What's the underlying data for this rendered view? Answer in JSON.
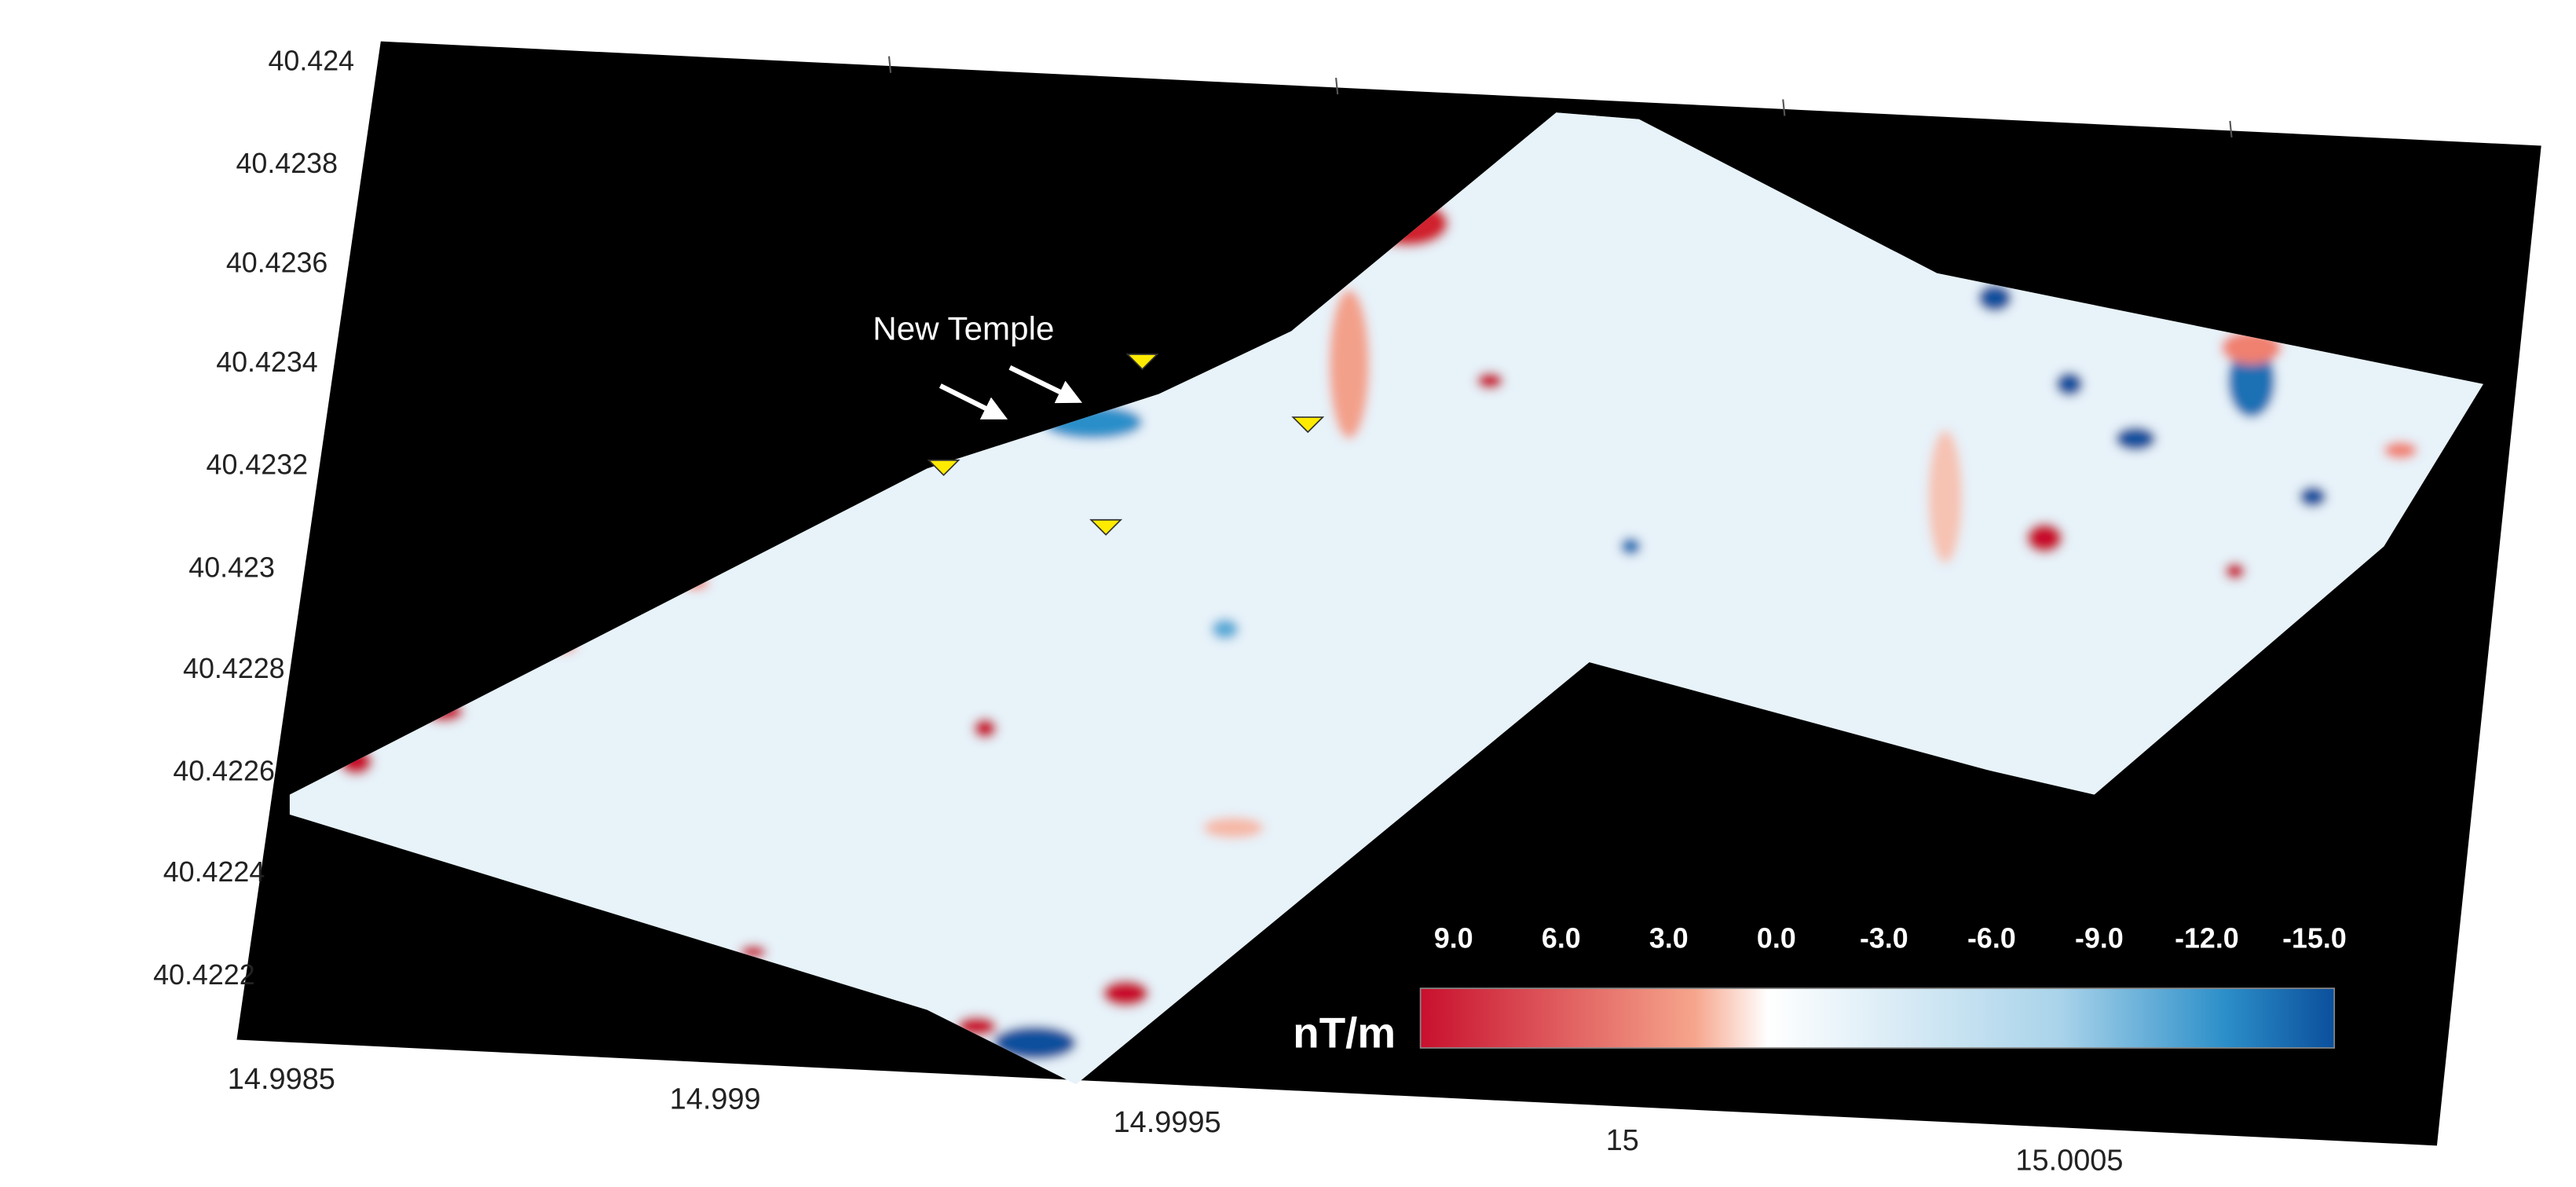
{
  "map": {
    "annotation": "New Temple",
    "y_axis_labels": [
      "40.424",
      "40.4238",
      "40.4236",
      "40.4234",
      "40.4232",
      "40.423",
      "40.4228",
      "40.4226",
      "40.4224",
      "40.4222"
    ],
    "x_axis_labels": [
      "14.9985",
      "14.999",
      "14.9995",
      "15",
      "15.0005"
    ],
    "colorbar": {
      "unit": "nT/m",
      "ticks": [
        "9.0",
        "6.0",
        "3.0",
        "0.0",
        "-3.0",
        "-6.0",
        "-9.0",
        "-12.0",
        "-15.0"
      ]
    }
  }
}
